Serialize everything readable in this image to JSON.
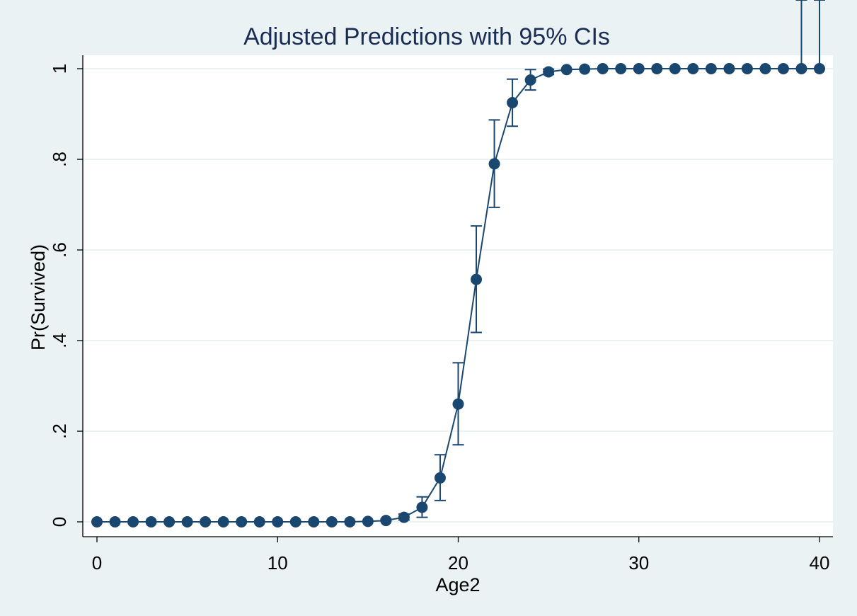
{
  "chart_data": {
    "type": "line",
    "title": "Adjusted Predictions with 95% CIs",
    "xlabel": "Age2",
    "ylabel": "Pr(Survived)",
    "xlim": [
      0,
      40
    ],
    "ylim": [
      0,
      1
    ],
    "x_ticks": [
      0,
      10,
      20,
      30,
      40
    ],
    "x_tick_labels": [
      "0",
      "10",
      "20",
      "30",
      "40"
    ],
    "y_ticks": [
      0,
      0.2,
      0.4,
      0.6,
      0.8,
      1
    ],
    "y_tick_labels": [
      "0",
      ".2",
      ".4",
      ".6",
      ".8",
      "1"
    ],
    "grid": true,
    "legend": "none",
    "series": [
      {
        "name": "Pr(Survived)",
        "color": "#1a476f",
        "x": [
          0,
          1,
          2,
          3,
          4,
          5,
          6,
          7,
          8,
          9,
          10,
          11,
          12,
          13,
          14,
          15,
          16,
          17,
          18,
          19,
          20,
          21,
          22,
          23,
          24,
          25,
          26,
          27,
          28,
          29,
          30,
          31,
          32,
          33,
          34,
          35,
          36,
          37,
          38,
          39,
          40
        ],
        "values": [
          0,
          0,
          0,
          0,
          0,
          0,
          0,
          0,
          0,
          0,
          0,
          0,
          0,
          0,
          0,
          0.001,
          0.003,
          0.01,
          0.032,
          0.097,
          0.26,
          0.535,
          0.79,
          0.925,
          0.975,
          0.993,
          0.998,
          0.999,
          1,
          1,
          1,
          1,
          1,
          1,
          1,
          1,
          1,
          1,
          1,
          1,
          1
        ],
        "ci_low": [
          0,
          0,
          0,
          0,
          0,
          0,
          0,
          0,
          0,
          0,
          0,
          0,
          0,
          0,
          0,
          0,
          0.001,
          0.004,
          0.01,
          0.047,
          0.17,
          0.418,
          0.694,
          0.873,
          0.953,
          0.987,
          0.996,
          0.999,
          1,
          1,
          1,
          1,
          1,
          1,
          1,
          1,
          1,
          1,
          1,
          1,
          1
        ],
        "ci_high": [
          0,
          0,
          0,
          0,
          0,
          0,
          0,
          0,
          0,
          0,
          0,
          0,
          0,
          0,
          0,
          0.002,
          0.006,
          0.017,
          0.055,
          0.148,
          0.351,
          0.653,
          0.887,
          0.977,
          0.998,
          0.999,
          1,
          1,
          1,
          1,
          1,
          1,
          1,
          1,
          1,
          1,
          1,
          1,
          1
        ]
      }
    ]
  }
}
